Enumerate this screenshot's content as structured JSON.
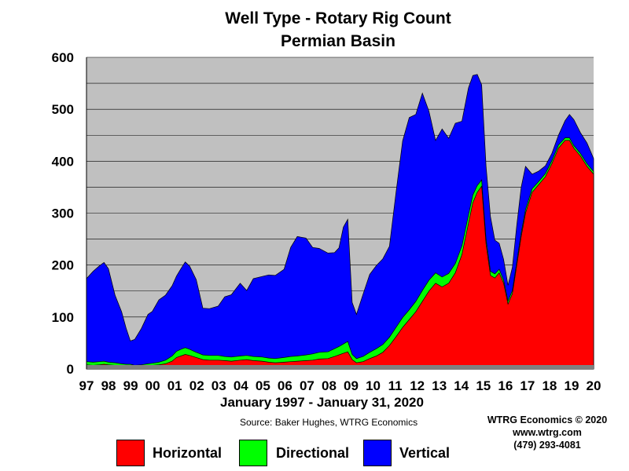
{
  "chart_data": {
    "type": "area",
    "stacked": true,
    "title": "Well Type - Rotary Rig Count",
    "subtitle": "Permian Basin",
    "xlabel": "January 1997 - January 31, 2020",
    "source": "Source: Baker Hughes, WTRG Economics",
    "credit_lines": [
      "WTRG Economics © 2020",
      "www.wtrg.com",
      "(479) 293-4081"
    ],
    "x_tick_labels": [
      "97",
      "98",
      "99",
      "00",
      "01",
      "02",
      "03",
      "04",
      "05",
      "06",
      "07",
      "08",
      "09",
      "10",
      "11",
      "12",
      "13",
      "14",
      "15",
      "16",
      "17",
      "18",
      "19",
      "20"
    ],
    "y_tick_labels": [
      "0",
      "100",
      "200",
      "300",
      "400",
      "500",
      "600"
    ],
    "ylim": [
      0,
      600
    ],
    "xlim": [
      1997.0,
      2020.1
    ],
    "grid": "horizontal",
    "legend_position": "bottom",
    "x": [
      1997.0,
      1997.3,
      1997.6,
      1997.8,
      1998.0,
      1998.3,
      1998.6,
      1998.8,
      1999.0,
      1999.2,
      1999.5,
      1999.8,
      2000.0,
      2000.3,
      2000.6,
      2000.9,
      2001.1,
      2001.3,
      2001.5,
      2001.7,
      2002.0,
      2002.3,
      2002.6,
      2003.0,
      2003.3,
      2003.6,
      2004.0,
      2004.3,
      2004.6,
      2005.0,
      2005.3,
      2005.6,
      2006.0,
      2006.3,
      2006.6,
      2007.0,
      2007.3,
      2007.6,
      2008.0,
      2008.3,
      2008.5,
      2008.7,
      2008.9,
      2009.1,
      2009.3,
      2009.6,
      2009.9,
      2010.2,
      2010.5,
      2010.8,
      2011.1,
      2011.4,
      2011.7,
      2012.0,
      2012.3,
      2012.6,
      2012.9,
      2013.2,
      2013.5,
      2013.8,
      2014.1,
      2014.4,
      2014.6,
      2014.8,
      2015.0,
      2015.2,
      2015.4,
      2015.6,
      2015.8,
      2016.0,
      2016.2,
      2016.4,
      2016.6,
      2016.8,
      2017.0,
      2017.3,
      2017.6,
      2017.9,
      2018.2,
      2018.5,
      2018.8,
      2019.0,
      2019.2,
      2019.5,
      2019.8,
      2020.1
    ],
    "series": [
      {
        "name": "Horizontal",
        "color": "#ff0000",
        "values": [
          8,
          7,
          8,
          9,
          8,
          7,
          6,
          5,
          5,
          4,
          5,
          6,
          7,
          8,
          10,
          15,
          22,
          25,
          28,
          26,
          22,
          18,
          17,
          17,
          16,
          15,
          17,
          18,
          16,
          15,
          13,
          12,
          13,
          14,
          15,
          16,
          17,
          19,
          20,
          24,
          27,
          30,
          33,
          18,
          12,
          14,
          20,
          25,
          32,
          45,
          62,
          80,
          95,
          110,
          130,
          150,
          165,
          158,
          165,
          185,
          220,
          280,
          320,
          340,
          352,
          240,
          180,
          175,
          185,
          165,
          125,
          145,
          200,
          255,
          300,
          340,
          355,
          370,
          395,
          425,
          440,
          440,
          425,
          410,
          390,
          375
        ]
      },
      {
        "name": "Directional",
        "color": "#00ff00",
        "values": [
          6,
          6,
          6,
          6,
          5,
          5,
          4,
          4,
          4,
          3,
          3,
          4,
          4,
          5,
          7,
          10,
          12,
          13,
          13,
          12,
          10,
          9,
          9,
          9,
          8,
          8,
          8,
          8,
          8,
          8,
          8,
          8,
          9,
          10,
          10,
          11,
          12,
          13,
          13,
          15,
          16,
          18,
          20,
          10,
          8,
          10,
          12,
          14,
          15,
          16,
          18,
          19,
          19,
          20,
          21,
          21,
          20,
          19,
          19,
          18,
          17,
          16,
          15,
          13,
          12,
          10,
          8,
          8,
          7,
          6,
          6,
          6,
          7,
          7,
          7,
          7,
          6,
          6,
          6,
          6,
          5,
          5,
          5,
          5,
          5,
          5
        ]
      },
      {
        "name": "Vertical",
        "color": "#0000ff",
        "values": [
          160,
          175,
          185,
          190,
          180,
          130,
          100,
          70,
          45,
          50,
          70,
          95,
          100,
          120,
          125,
          135,
          145,
          155,
          165,
          160,
          140,
          90,
          90,
          95,
          115,
          120,
          140,
          125,
          150,
          155,
          160,
          160,
          170,
          210,
          230,
          225,
          205,
          200,
          190,
          185,
          190,
          225,
          235,
          100,
          85,
          120,
          150,
          160,
          165,
          175,
          260,
          340,
          370,
          360,
          380,
          325,
          255,
          285,
          260,
          270,
          240,
          245,
          230,
          214,
          183,
          140,
          105,
          65,
          50,
          40,
          30,
          45,
          70,
          88,
          83,
          28,
          20,
          15,
          14,
          19,
          33,
          45,
          50,
          40,
          40,
          25
        ]
      }
    ]
  }
}
